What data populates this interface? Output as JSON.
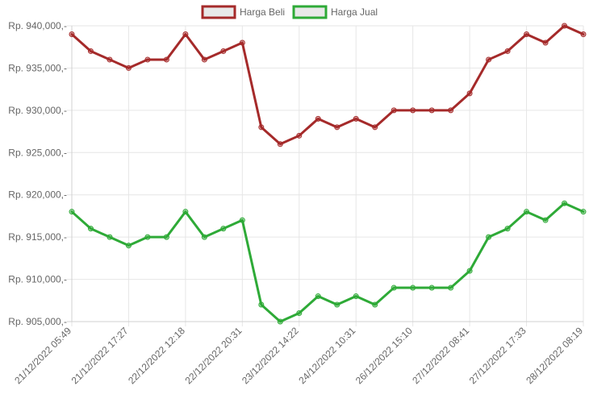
{
  "chart_data": {
    "type": "line",
    "legend_position": "top",
    "grid": true,
    "x_tick_labels": [
      "21/12/2022 05:49",
      "21/12/2022 17:27",
      "22/12/2022 12:18",
      "22/12/2022 20:31",
      "23/12/2022 14:22",
      "24/12/2022 10:31",
      "26/12/2022 15:10",
      "27/12/2022 08:41",
      "27/12/2022 17:33",
      "28/12/2022 08:19"
    ],
    "x_tick_every": 3,
    "y_ticks": [
      "Rp. 905,000,-",
      "Rp. 910,000,-",
      "Rp. 915,000,-",
      "Rp. 920,000,-",
      "Rp. 925,000,-",
      "Rp. 930,000,-",
      "Rp. 935,000,-",
      "Rp. 940,000,-"
    ],
    "ylim": [
      905000,
      940000
    ],
    "y_step": 5000,
    "point_count": 28,
    "series": [
      {
        "name": "Harga Beli",
        "color": "#a52a2a",
        "values": [
          939000,
          937000,
          936000,
          935000,
          936000,
          936000,
          939000,
          936000,
          937000,
          938000,
          928000,
          926000,
          927000,
          929000,
          928000,
          929000,
          928000,
          930000,
          930000,
          930000,
          930000,
          932000,
          936000,
          937000,
          939000,
          938000,
          940000,
          939000
        ]
      },
      {
        "name": "Harga Jual",
        "color": "#2eaa37",
        "values": [
          918000,
          916000,
          915000,
          914000,
          915000,
          915000,
          918000,
          915000,
          916000,
          917000,
          907000,
          905000,
          906000,
          908000,
          907000,
          908000,
          907000,
          909000,
          909000,
          909000,
          909000,
          911000,
          915000,
          916000,
          918000,
          917000,
          919000,
          918000
        ]
      }
    ]
  }
}
